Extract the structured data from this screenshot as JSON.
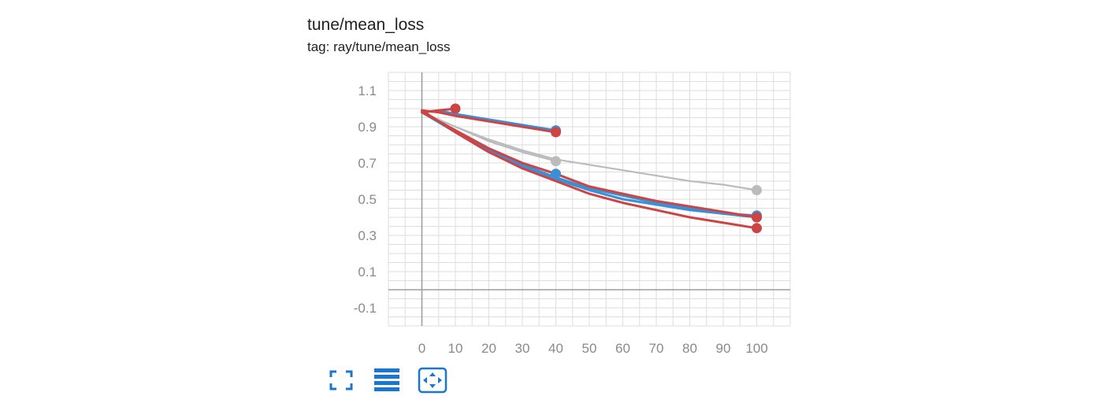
{
  "header": {
    "title": "tune/mean_loss",
    "subtitle": "tag: ray/tune/mean_loss"
  },
  "toolbar": {
    "buttons": [
      {
        "icon": "fullscreen-icon",
        "label": "Toggle full size"
      },
      {
        "icon": "list-icon",
        "label": "Toggle y-axis log scale"
      },
      {
        "icon": "fit-domain-icon",
        "label": "Fit domain to data"
      }
    ],
    "icon_color": "#1976d2"
  },
  "chart_data": {
    "type": "line",
    "title": "tune/mean_loss",
    "subtitle": "tag: ray/tune/mean_loss",
    "xlabel": "",
    "ylabel": "",
    "xlim": [
      -10,
      110
    ],
    "ylim": [
      -0.2,
      1.2
    ],
    "x_ticks": [
      0,
      10,
      20,
      30,
      40,
      50,
      60,
      70,
      80,
      90,
      100
    ],
    "y_ticks": [
      -0.1,
      0.1,
      0.3,
      0.5,
      0.7,
      0.9,
      1.1
    ],
    "grid": true,
    "legend": "none",
    "series": [
      {
        "color": "#3b8fd4",
        "x": [
          0,
          5,
          10,
          20,
          30,
          40
        ],
        "y": [
          0.98,
          0.99,
          0.97,
          0.94,
          0.91,
          0.88
        ]
      },
      {
        "color": "#cc4444",
        "x": [
          0,
          5,
          10,
          20,
          30,
          40
        ],
        "y": [
          0.99,
          0.98,
          0.96,
          0.93,
          0.9,
          0.87
        ]
      },
      {
        "color": "#cc4444",
        "x": [
          0,
          5,
          10
        ],
        "y": [
          0.98,
          0.99,
          1.0
        ]
      },
      {
        "color": "#bbbbbb",
        "x": [
          0,
          10,
          20,
          30,
          40
        ],
        "y": [
          0.98,
          0.9,
          0.82,
          0.76,
          0.71
        ]
      },
      {
        "color": "#3b8fd4",
        "x": [
          0,
          10,
          20,
          30,
          40
        ],
        "y": [
          0.98,
          0.88,
          0.78,
          0.7,
          0.64
        ]
      },
      {
        "color": "#bbbbbb",
        "x": [
          0,
          10,
          20,
          30,
          40,
          50,
          60,
          70,
          80,
          90,
          100
        ],
        "y": [
          0.98,
          0.9,
          0.83,
          0.77,
          0.72,
          0.69,
          0.66,
          0.63,
          0.6,
          0.58,
          0.55
        ]
      },
      {
        "color": "#3b8fd4",
        "x": [
          0,
          10,
          20,
          30,
          40,
          50,
          60,
          70,
          80,
          90,
          100
        ],
        "y": [
          0.98,
          0.88,
          0.77,
          0.69,
          0.62,
          0.56,
          0.52,
          0.48,
          0.45,
          0.42,
          0.4
        ]
      },
      {
        "color": "#3b8fd4",
        "x": [
          0,
          10,
          20,
          30,
          40,
          50,
          60,
          70,
          80,
          90,
          100
        ],
        "y": [
          0.98,
          0.87,
          0.76,
          0.68,
          0.61,
          0.55,
          0.5,
          0.47,
          0.44,
          0.42,
          0.41
        ]
      },
      {
        "color": "#cc4444",
        "x": [
          0,
          10,
          20,
          30,
          40,
          50,
          60,
          70,
          80,
          90,
          100
        ],
        "y": [
          0.98,
          0.88,
          0.78,
          0.7,
          0.64,
          0.57,
          0.53,
          0.49,
          0.46,
          0.43,
          0.4
        ]
      },
      {
        "color": "#cc4444",
        "x": [
          0,
          10,
          20,
          30,
          40,
          50,
          60,
          70,
          80,
          90,
          100
        ],
        "y": [
          0.99,
          0.87,
          0.76,
          0.67,
          0.6,
          0.53,
          0.48,
          0.44,
          0.4,
          0.37,
          0.34
        ]
      }
    ],
    "endpoints": [
      {
        "color": "#3b8fd4",
        "x": 40,
        "y": 0.88
      },
      {
        "color": "#cc4444",
        "x": 40,
        "y": 0.87
      },
      {
        "color": "#cc4444",
        "x": 10,
        "y": 1.0
      },
      {
        "color": "#bbbbbb",
        "x": 40,
        "y": 0.71
      },
      {
        "color": "#3b8fd4",
        "x": 40,
        "y": 0.64
      },
      {
        "color": "#bbbbbb",
        "x": 100,
        "y": 0.55
      },
      {
        "color": "#3b8fd4",
        "x": 100,
        "y": 0.41
      },
      {
        "color": "#3b8fd4",
        "x": 100,
        "y": 0.4
      },
      {
        "color": "#cc4444",
        "x": 100,
        "y": 0.4
      },
      {
        "color": "#cc4444",
        "x": 100,
        "y": 0.34
      }
    ]
  }
}
